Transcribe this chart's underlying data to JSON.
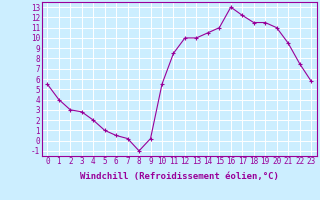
{
  "x": [
    0,
    1,
    2,
    3,
    4,
    5,
    6,
    7,
    8,
    9,
    10,
    11,
    12,
    13,
    14,
    15,
    16,
    17,
    18,
    19,
    20,
    21,
    22,
    23
  ],
  "y": [
    5.5,
    4.0,
    3.0,
    2.8,
    2.0,
    1.0,
    0.5,
    0.2,
    -1.0,
    0.2,
    5.5,
    8.5,
    10.0,
    10.0,
    10.5,
    11.0,
    13.0,
    12.2,
    11.5,
    11.5,
    11.0,
    9.5,
    7.5,
    5.8
  ],
  "line_color": "#990099",
  "marker": "+",
  "bg_color": "#cceeff",
  "grid_color": "#ffffff",
  "xlabel": "Windchill (Refroidissement éolien,°C)",
  "xlabel_color": "#990099",
  "tick_color": "#990099",
  "ylim": [
    -1.5,
    13.5
  ],
  "xlim": [
    -0.5,
    23.5
  ],
  "yticks": [
    -1,
    0,
    1,
    2,
    3,
    4,
    5,
    6,
    7,
    8,
    9,
    10,
    11,
    12,
    13
  ],
  "xticks": [
    0,
    1,
    2,
    3,
    4,
    5,
    6,
    7,
    8,
    9,
    10,
    11,
    12,
    13,
    14,
    15,
    16,
    17,
    18,
    19,
    20,
    21,
    22,
    23
  ],
  "font_family": "monospace",
  "font_size": 5.5,
  "xlabel_fontsize": 6.5
}
